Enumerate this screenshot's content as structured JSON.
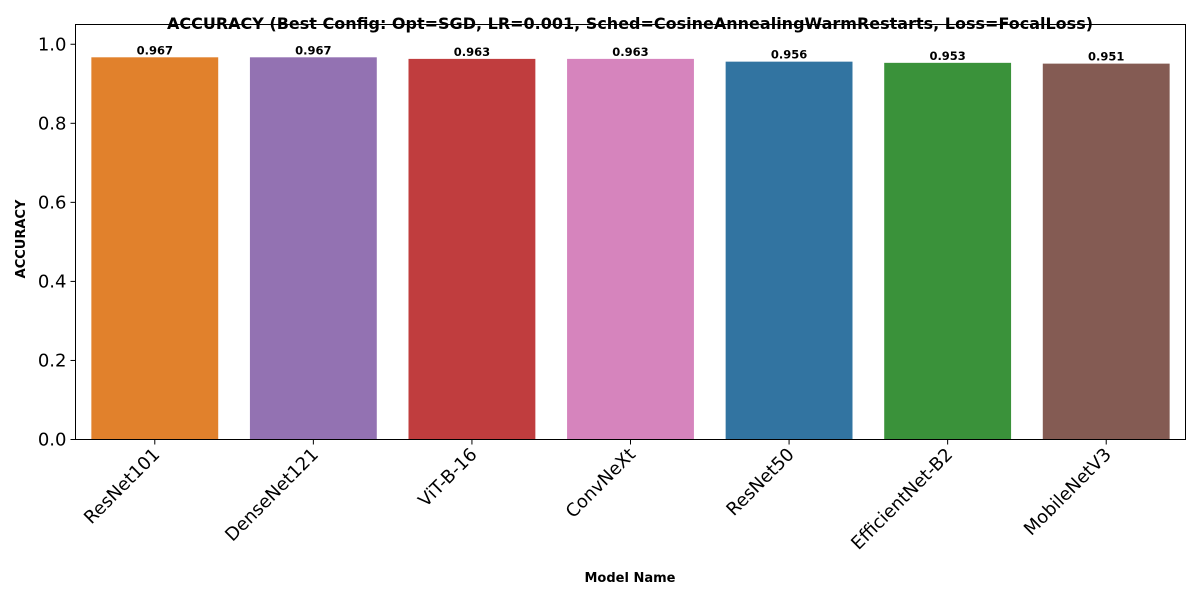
{
  "chart_data": {
    "type": "bar",
    "title": "ACCURACY (Best Config: Opt=SGD, LR=0.001, Sched=CosineAnnealingWarmRestarts, Loss=FocalLoss)",
    "xlabel": "Model Name",
    "ylabel": "ACCURACY",
    "categories": [
      "ResNet101",
      "DenseNet121",
      "ViT-B-16",
      "ConvNeXt",
      "ResNet50",
      "EfficientNet-B2",
      "MobileNetV3"
    ],
    "values": [
      0.967,
      0.967,
      0.963,
      0.963,
      0.956,
      0.953,
      0.951
    ],
    "data_labels": [
      "0.967",
      "0.967",
      "0.963",
      "0.963",
      "0.956",
      "0.953",
      "0.951"
    ],
    "colors": [
      "#e1812c",
      "#9372b2",
      "#c03d3e",
      "#d684bd",
      "#3274a1",
      "#3a923a",
      "#845b53"
    ],
    "ylim": [
      0,
      1.0
    ],
    "yticks": [
      0.0,
      0.2,
      0.4,
      0.6,
      0.8,
      1.0
    ],
    "ytick_labels": [
      "0.0",
      "0.2",
      "0.4",
      "0.6",
      "0.8",
      "1.0"
    ],
    "grid": false,
    "legend": "none"
  }
}
